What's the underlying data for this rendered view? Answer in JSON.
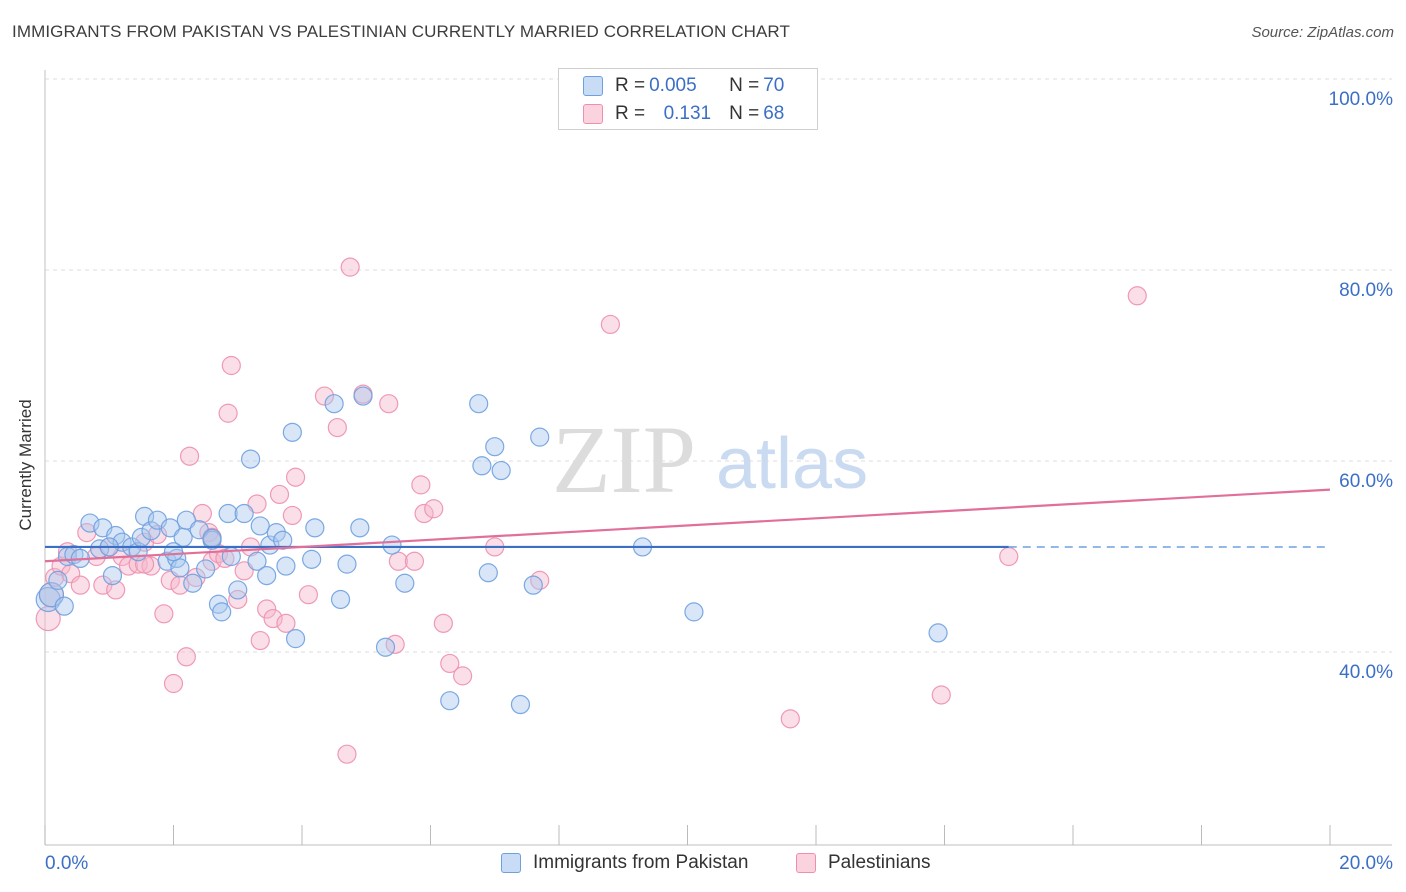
{
  "header": {
    "title": "IMMIGRANTS FROM PAKISTAN VS PALESTINIAN CURRENTLY MARRIED CORRELATION CHART",
    "source": "Source: ZipAtlas.com"
  },
  "watermark": {
    "zip": "ZIP",
    "atlas": "atlas"
  },
  "legend": {
    "rows": [
      {
        "r_label": "R = ",
        "r_value": "0.005",
        "n_label": "N = ",
        "n_value": "70",
        "color": "#a8c8ee"
      },
      {
        "r_label": "R = ",
        "r_value": "0.131",
        "n_label": "N = ",
        "n_value": "68",
        "color": "#f5b8cb"
      }
    ]
  },
  "bottom_legend": {
    "items": [
      {
        "label": "Immigrants from Pakistan",
        "color": "#a8c8ee"
      },
      {
        "label": "Palestinians",
        "color": "#f5b8cb"
      }
    ]
  },
  "chart_data": {
    "type": "scatter",
    "title": "IMMIGRANTS FROM PAKISTAN VS PALESTINIAN CURRENTLY MARRIED CORRELATION CHART",
    "xlabel": "",
    "ylabel": "Currently Married",
    "xlim": [
      0,
      20
    ],
    "ylim": [
      20,
      105
    ],
    "x_tick_labels": [
      "0.0%",
      "20.0%"
    ],
    "y_ticks": [
      40,
      60,
      80,
      100
    ],
    "y_tick_labels": [
      "40.0%",
      "60.0%",
      "80.0%",
      "100.0%"
    ],
    "grid": true,
    "legend_position": "top-center",
    "series": [
      {
        "name": "Immigrants from Pakistan",
        "color": "#6ea0e0",
        "fill": "#a8c8ee",
        "trend": {
          "x": [
            0,
            15
          ],
          "y": [
            51.0,
            51.0
          ],
          "dashed_to": 20
        },
        "points": [
          [
            0.05,
            45.5
          ],
          [
            0.1,
            46.0
          ],
          [
            0.2,
            47.5
          ],
          [
            0.3,
            44.8
          ],
          [
            0.35,
            50.0
          ],
          [
            0.45,
            50.2
          ],
          [
            0.55,
            49.8
          ],
          [
            0.7,
            53.5
          ],
          [
            0.85,
            50.8
          ],
          [
            0.9,
            53.0
          ],
          [
            1.05,
            48.0
          ],
          [
            1.1,
            52.2
          ],
          [
            1.2,
            51.5
          ],
          [
            1.35,
            51.0
          ],
          [
            1.45,
            50.5
          ],
          [
            1.5,
            52.0
          ],
          [
            1.55,
            54.2
          ],
          [
            1.65,
            52.7
          ],
          [
            1.75,
            53.8
          ],
          [
            1.9,
            49.5
          ],
          [
            1.95,
            53.0
          ],
          [
            2.05,
            49.8
          ],
          [
            2.1,
            48.8
          ],
          [
            2.15,
            52.0
          ],
          [
            2.2,
            53.8
          ],
          [
            2.3,
            47.2
          ],
          [
            2.4,
            52.8
          ],
          [
            2.5,
            48.7
          ],
          [
            2.6,
            51.7
          ],
          [
            2.7,
            45.0
          ],
          [
            2.75,
            44.2
          ],
          [
            2.85,
            54.5
          ],
          [
            2.9,
            50.0
          ],
          [
            3.0,
            46.5
          ],
          [
            3.1,
            54.5
          ],
          [
            3.2,
            60.2
          ],
          [
            3.3,
            49.5
          ],
          [
            3.35,
            53.2
          ],
          [
            3.45,
            48.0
          ],
          [
            3.5,
            51.2
          ],
          [
            3.6,
            52.5
          ],
          [
            3.7,
            51.7
          ],
          [
            3.75,
            49.0
          ],
          [
            3.85,
            63.0
          ],
          [
            3.9,
            41.4
          ],
          [
            4.15,
            49.7
          ],
          [
            4.2,
            53.0
          ],
          [
            4.5,
            66.0
          ],
          [
            4.6,
            45.5
          ],
          [
            4.7,
            49.2
          ],
          [
            4.9,
            53.0
          ],
          [
            4.95,
            66.8
          ],
          [
            5.3,
            40.5
          ],
          [
            5.4,
            51.2
          ],
          [
            5.6,
            47.2
          ],
          [
            6.3,
            34.9
          ],
          [
            6.75,
            66.0
          ],
          [
            6.8,
            59.5
          ],
          [
            6.9,
            48.3
          ],
          [
            7.0,
            61.5
          ],
          [
            7.1,
            59.0
          ],
          [
            7.4,
            34.5
          ],
          [
            7.6,
            47.0
          ],
          [
            7.7,
            62.5
          ],
          [
            9.3,
            51.0
          ],
          [
            10.1,
            44.2
          ],
          [
            13.9,
            42.0
          ],
          [
            1.0,
            51.0
          ],
          [
            2.0,
            50.5
          ],
          [
            2.6,
            51.9
          ]
        ]
      },
      {
        "name": "Palestinians",
        "color": "#ee8fae",
        "fill": "#f5b8cb",
        "trend": {
          "x": [
            0,
            20
          ],
          "y": [
            49.5,
            57.0
          ]
        },
        "points": [
          [
            0.05,
            43.5
          ],
          [
            0.1,
            46.0
          ],
          [
            0.15,
            47.8
          ],
          [
            0.25,
            49.0
          ],
          [
            0.35,
            50.5
          ],
          [
            0.4,
            48.2
          ],
          [
            0.55,
            47.0
          ],
          [
            0.65,
            52.5
          ],
          [
            0.8,
            50.0
          ],
          [
            0.9,
            47.0
          ],
          [
            1.0,
            51.0
          ],
          [
            1.1,
            46.5
          ],
          [
            1.2,
            50.0
          ],
          [
            1.3,
            49.0
          ],
          [
            1.45,
            49.2
          ],
          [
            1.55,
            51.5
          ],
          [
            1.65,
            49.0
          ],
          [
            1.75,
            52.3
          ],
          [
            1.85,
            44.0
          ],
          [
            1.95,
            47.5
          ],
          [
            2.0,
            36.7
          ],
          [
            2.1,
            47.0
          ],
          [
            2.2,
            39.5
          ],
          [
            2.25,
            60.5
          ],
          [
            2.35,
            47.8
          ],
          [
            2.45,
            54.5
          ],
          [
            2.55,
            52.5
          ],
          [
            2.6,
            49.5
          ],
          [
            2.7,
            50.3
          ],
          [
            2.8,
            49.8
          ],
          [
            2.85,
            65.0
          ],
          [
            2.9,
            70.0
          ],
          [
            3.0,
            45.5
          ],
          [
            3.1,
            48.5
          ],
          [
            3.2,
            51.0
          ],
          [
            3.3,
            55.5
          ],
          [
            3.35,
            41.2
          ],
          [
            3.45,
            44.5
          ],
          [
            3.55,
            43.5
          ],
          [
            3.65,
            56.5
          ],
          [
            3.75,
            43.0
          ],
          [
            3.85,
            54.3
          ],
          [
            3.9,
            58.3
          ],
          [
            4.1,
            46.0
          ],
          [
            4.35,
            66.8
          ],
          [
            4.55,
            63.5
          ],
          [
            4.7,
            29.3
          ],
          [
            4.75,
            80.3
          ],
          [
            4.95,
            67.0
          ],
          [
            5.35,
            66.0
          ],
          [
            5.45,
            40.8
          ],
          [
            5.5,
            49.5
          ],
          [
            5.75,
            49.5
          ],
          [
            5.85,
            57.5
          ],
          [
            5.9,
            54.5
          ],
          [
            6.05,
            55.0
          ],
          [
            6.2,
            43.0
          ],
          [
            6.3,
            38.8
          ],
          [
            6.5,
            37.5
          ],
          [
            7.0,
            51.0
          ],
          [
            7.7,
            47.5
          ],
          [
            8.8,
            74.3
          ],
          [
            11.6,
            33.0
          ],
          [
            13.95,
            35.5
          ],
          [
            15.0,
            50.0
          ],
          [
            17.0,
            77.3
          ],
          [
            1.55,
            49.2
          ],
          [
            2.6,
            52.0
          ]
        ]
      }
    ]
  }
}
